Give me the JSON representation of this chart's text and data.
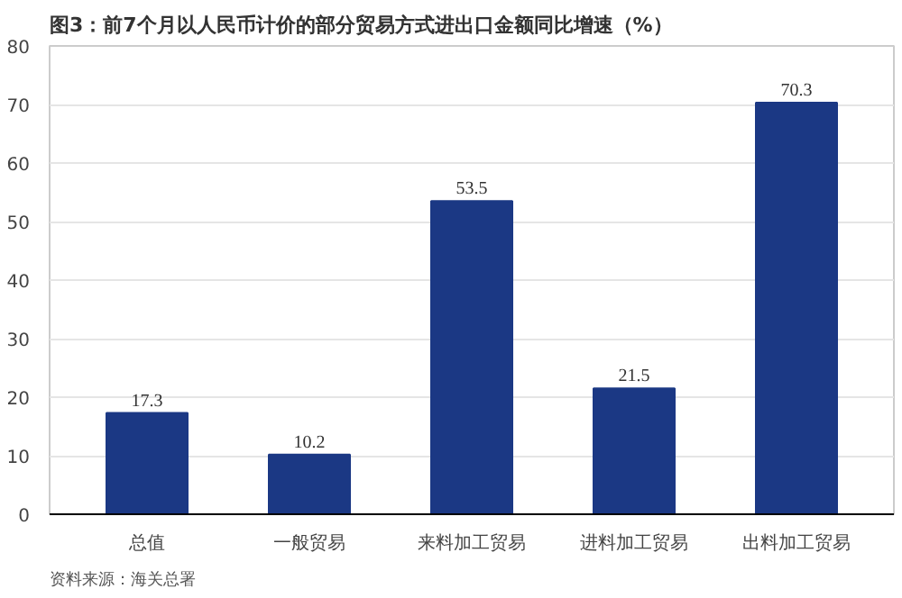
{
  "chart_data": {
    "type": "bar",
    "title": "图3：前7个月以人民币计价的部分贸易方式进出口金额同比增速（%）",
    "categories": [
      "总值",
      "一般贸易",
      "来料加工贸易",
      "进料加工贸易",
      "出料加工贸易"
    ],
    "values": [
      17.3,
      10.2,
      53.5,
      21.5,
      70.3
    ],
    "color": "#1b3884",
    "ylim": [
      0,
      80
    ],
    "yticks": [
      0,
      10,
      20,
      30,
      40,
      50,
      60,
      70,
      80
    ],
    "grid": "y",
    "data_labels": true,
    "annotations": [
      "资料来源：海关总署"
    ]
  }
}
